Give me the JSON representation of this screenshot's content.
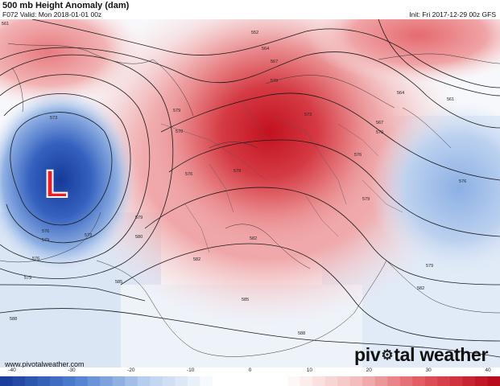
{
  "header": {
    "title": "500 mb Height Anomaly (dam)",
    "valid": "F072 Valid: Mon 2018-01-01 00z",
    "init": "Init: Fri 2017-12-29 00z GFS"
  },
  "map": {
    "low_marker": "L",
    "contour_labels": [
      "561",
      "552",
      "564",
      "567",
      "570",
      "573",
      "576",
      "579",
      "579",
      "579",
      "570",
      "573",
      "576",
      "579",
      "580",
      "582",
      "585",
      "588",
      "588",
      "576",
      "579",
      "573",
      "561",
      "564",
      "567",
      "570",
      "576",
      "579",
      "582",
      "576",
      "579",
      "582",
      "585"
    ]
  },
  "footer": {
    "url": "www.pivotalweather.com",
    "brand_before": "piv",
    "brand_after": "tal weather",
    "brand_icon": "gear-icon"
  },
  "colorbar": {
    "ticks": [
      "-40",
      "-30",
      "-20",
      "-10",
      "0",
      "10",
      "20",
      "30",
      "40"
    ],
    "colors": {
      "neg_strong": "#1a3f9a",
      "neg_mid": "#4f7fd0",
      "neg_light": "#b9cfee",
      "zero": "#ffffff",
      "pos_light": "#f4c0c0",
      "pos_mid": "#e0555c",
      "pos_strong": "#b80c1c"
    }
  }
}
